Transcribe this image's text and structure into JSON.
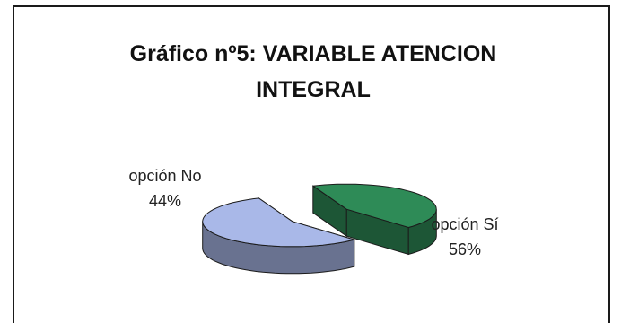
{
  "chart_data": {
    "type": "pie",
    "title": "Gráfico nº5:  VARIABLE ATENCION INTEGRAL",
    "title_lines": [
      "Gráfico nº5:  VARIABLE ATENCION",
      "INTEGRAL"
    ],
    "style": "3d exploded",
    "slices": [
      {
        "label": "opción No",
        "percent_label": "44%",
        "value": 44,
        "color": "#2e8b57"
      },
      {
        "label": "opción Sí",
        "percent_label": "56%",
        "value": 56,
        "color": "#a9b8e8"
      }
    ],
    "legend": "none"
  }
}
